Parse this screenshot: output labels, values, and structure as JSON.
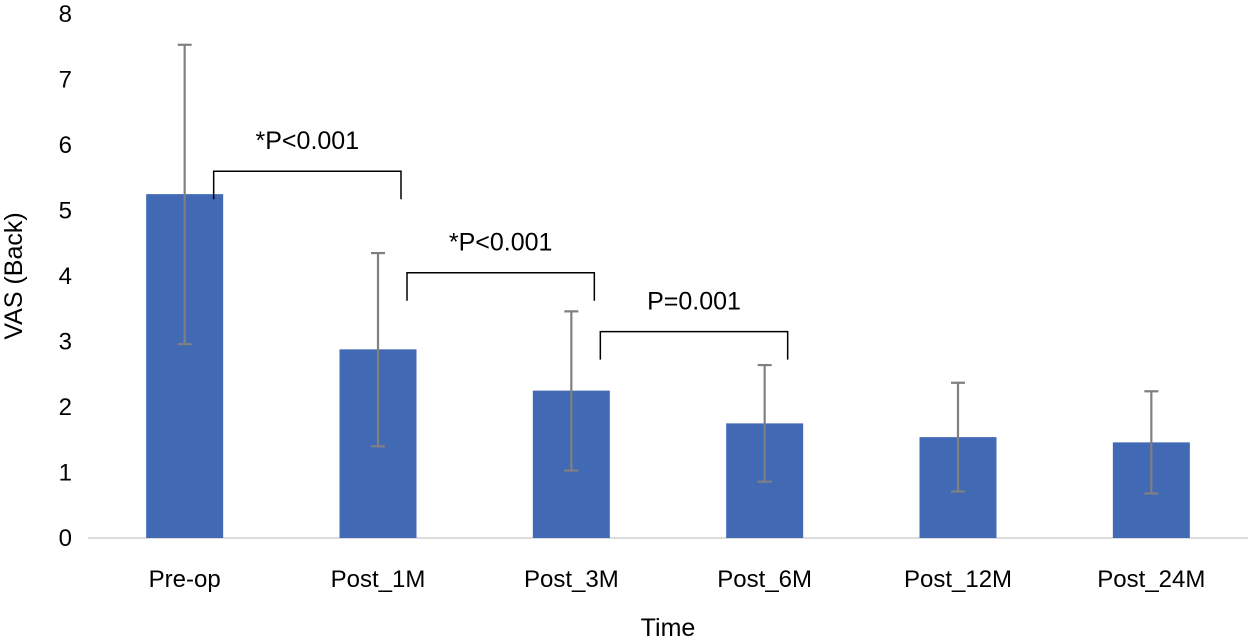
{
  "chart_data": {
    "type": "bar",
    "xlabel": "Time",
    "ylabel": "VAS (Back)",
    "ylim": [
      0,
      8
    ],
    "yticks": [
      0,
      1,
      2,
      3,
      4,
      5,
      6,
      7,
      8
    ],
    "grid": false,
    "categories": [
      "Pre-op",
      "Post_1M",
      "Post_3M",
      "Post_6M",
      "Post_12M",
      "Post_24M"
    ],
    "values": [
      5.25,
      2.88,
      2.25,
      1.75,
      1.54,
      1.46
    ],
    "error_upper": [
      7.53,
      4.35,
      3.46,
      2.64,
      2.37,
      2.24
    ],
    "error_lower": [
      2.96,
      1.4,
      1.03,
      0.86,
      0.71,
      0.68
    ],
    "bar_color": "#4169b4",
    "error_color": "#808080",
    "annotations": [
      {
        "label": "*P<0.001",
        "from": "Pre-op",
        "to": "Post_1M",
        "level": 5.6
      },
      {
        "label": "*P<0.001",
        "from": "Post_1M",
        "to": "Post_3M",
        "level": 4.05
      },
      {
        "label": "P=0.001",
        "from": "Post_3M",
        "to": "Post_6M",
        "level": 3.15
      }
    ]
  }
}
